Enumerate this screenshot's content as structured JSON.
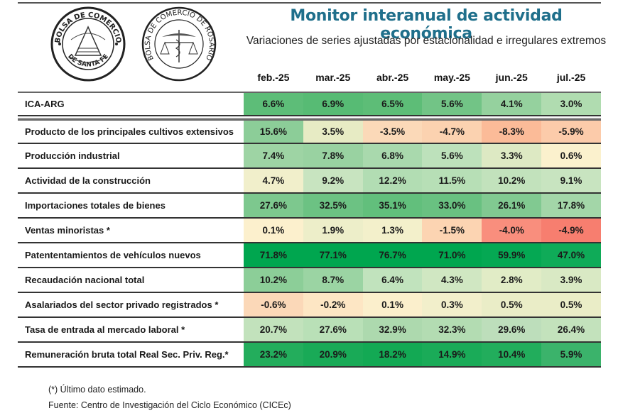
{
  "header": {
    "title": "Monitor interanual de actividad económica",
    "subtitle": "Variaciones de series ajustadas por estacionalidad e irregulares extremos",
    "logos": [
      {
        "icon": "bolsa-santa-fe-seal-icon",
        "top_text": "BOLSA DE COMERCIO",
        "bottom_text": "DE SANTA FE"
      },
      {
        "icon": "bolsa-rosario-seal-icon",
        "text": "BOLSA DE COMERCIO DE ROSARIO"
      }
    ]
  },
  "chart_data": {
    "type": "heatmap",
    "title": "Monitor interanual de actividad económica",
    "subtitle": "Variaciones de series ajustadas por estacionalidad e irregulares extremos",
    "columns": [
      "feb.-25",
      "mar.-25",
      "abr.-25",
      "may.-25",
      "jun.-25",
      "jul.-25"
    ],
    "unit": "%",
    "color_scale": {
      "negative": "#f8696b",
      "neutral": "#fcf3cf",
      "positive": "#00a650"
    },
    "rows": [
      {
        "label": "ICA-ARG",
        "values": [
          6.6,
          6.9,
          6.5,
          5.6,
          4.1,
          3.0
        ],
        "separator_after": true
      },
      {
        "label": "Producto de los principales cultivos extensivos",
        "values": [
          15.6,
          3.5,
          -3.5,
          -4.7,
          -8.3,
          -5.9
        ]
      },
      {
        "label": "Producción industrial",
        "values": [
          7.4,
          7.8,
          6.8,
          5.6,
          3.3,
          0.6
        ]
      },
      {
        "label": "Actividad de la construcción",
        "values": [
          4.7,
          9.2,
          12.2,
          11.5,
          10.2,
          9.1
        ]
      },
      {
        "label": "Importaciones totales de bienes",
        "values": [
          27.6,
          32.5,
          35.1,
          33.0,
          26.1,
          17.8
        ]
      },
      {
        "label": "Ventas minoristas *",
        "values": [
          0.1,
          1.9,
          1.3,
          -1.5,
          -4.0,
          -4.9
        ]
      },
      {
        "label": "Patententamientos de vehículos nuevos",
        "values": [
          71.8,
          77.1,
          76.7,
          71.0,
          59.9,
          47.0
        ]
      },
      {
        "label": "Recaudación nacional total",
        "values": [
          10.2,
          8.7,
          6.4,
          4.3,
          2.8,
          3.9
        ]
      },
      {
        "label": "Asalariados del sector privado registrados *",
        "values": [
          -0.6,
          -0.2,
          0.1,
          0.3,
          0.5,
          0.5
        ]
      },
      {
        "label": "Tasa de entrada al mercado laboral *",
        "values": [
          20.7,
          27.6,
          32.9,
          32.3,
          29.6,
          26.4
        ]
      },
      {
        "label": "Remuneración bruta total Real Sec. Priv. Reg.*",
        "values": [
          23.2,
          20.9,
          18.2,
          14.9,
          10.4,
          5.9
        ]
      }
    ],
    "cell_colors": [
      [
        "#5dbd78",
        "#57bb74",
        "#5dbd77",
        "#72c486",
        "#95d19e",
        "#b0dcb0"
      ],
      [
        "#8ccd98",
        "#e7ebc4",
        "#fbd9b8",
        "#fbd2b0",
        "#fbbb98",
        "#fccbaa"
      ],
      [
        "#9ed4a4",
        "#99d2a1",
        "#a9d9ad",
        "#bde1bb",
        "#dde9c3",
        "#fbf1cd"
      ],
      [
        "#f1efcb",
        "#c8e4c0",
        "#b2ddb3",
        "#b7dfb6",
        "#c2e2bc",
        "#c8e4c0"
      ],
      [
        "#7dc88e",
        "#6cc283",
        "#62bf7c",
        "#69c181",
        "#81c991",
        "#a3d6a8"
      ],
      [
        "#fcf0cd",
        "#edeec9",
        "#f3f0cb",
        "#fcd4b2",
        "#f98e7d",
        "#f77e6f"
      ],
      [
        "#00a64f",
        "#00a64f",
        "#00a64f",
        "#00a64f",
        "#05a853",
        "#0fab58"
      ],
      [
        "#8cce98",
        "#9bd4a3",
        "#c1e3bd",
        "#d0e7c2",
        "#e1ecc6",
        "#d9e9c4"
      ],
      [
        "#fbd8b8",
        "#fde6c4",
        "#fbefcc",
        "#f2efcb",
        "#eaedc7",
        "#eaedc7"
      ],
      [
        "#c2e2bc",
        "#b9e0b7",
        "#add9ae",
        "#b3dcb2",
        "#bddebb",
        "#c3e2bc"
      ],
      [
        "#23ad5c",
        "#19aa57",
        "#13a954",
        "#1aab58",
        "#22ad5c",
        "#3bb36b"
      ]
    ]
  },
  "footnotes": [
    "(*) Último dato estimado.",
    "Fuente: Centro de Investigación del Ciclo Económico (CICEc)"
  ]
}
